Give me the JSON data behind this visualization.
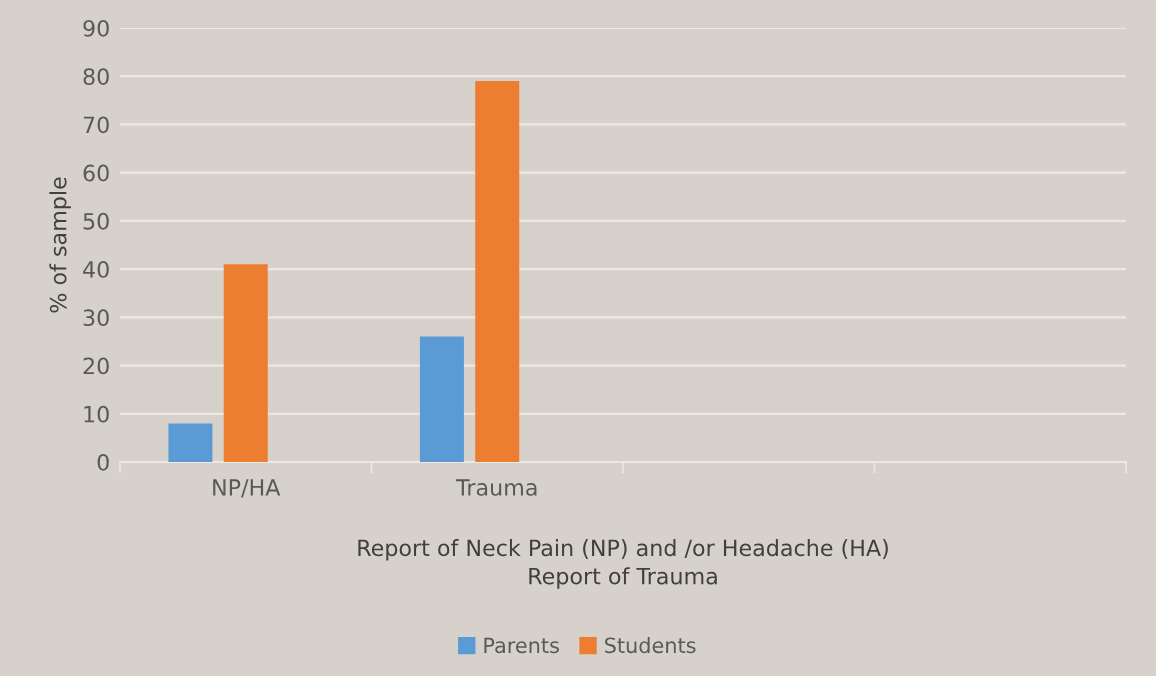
{
  "chart_data": {
    "type": "bar",
    "categories": [
      "NP/HA",
      "Trauma",
      null,
      null
    ],
    "series": [
      {
        "name": "Parents",
        "color": "#5b9bd5",
        "values": [
          8,
          26,
          null,
          null
        ]
      },
      {
        "name": "Students",
        "color": "#ed7d31",
        "values": [
          41,
          79,
          null,
          null
        ]
      }
    ],
    "xlabel": "Report of Neck Pain (NP) and /or Headache (HA)\nReport of Trauma",
    "ylabel": "% of sample",
    "ylim": [
      0,
      90
    ],
    "yticks": [
      0,
      10,
      20,
      30,
      40,
      50,
      60,
      70,
      80,
      90
    ],
    "grid": "y",
    "legend": "bottom"
  }
}
